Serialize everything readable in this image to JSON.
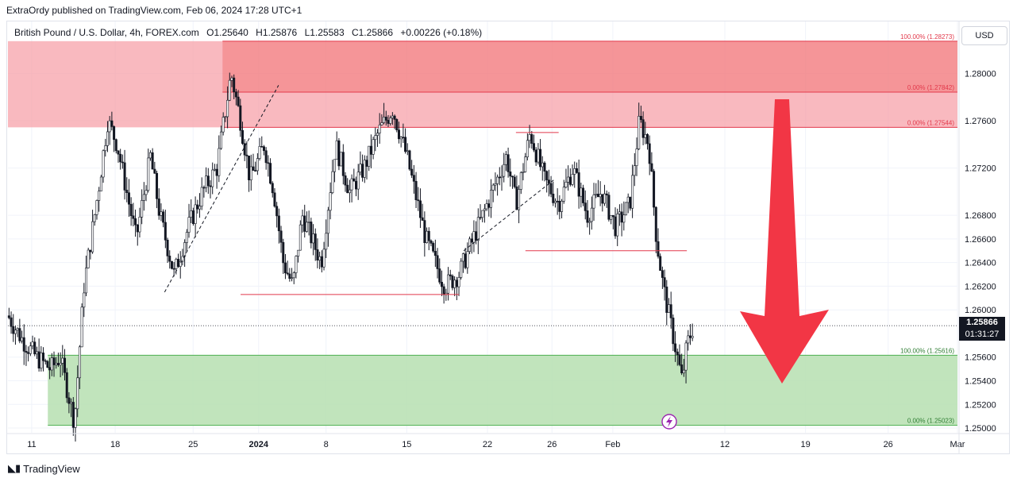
{
  "credit": "ExtraOrdy published on TradingView.com, Feb 06, 2024 17:28 UTC+1",
  "symbol": {
    "name": "British Pound / U.S. Dollar, 4h, FOREX.com",
    "open": "O1.25640",
    "high": "H1.25876",
    "low": "L1.25583",
    "close": "C1.25866",
    "change": "+0.00226 (+0.18%)"
  },
  "currency": "USD",
  "last_price": "1.25866",
  "countdown": "01:31:27",
  "footer_brand": "TradingView",
  "colors": {
    "bull": "#26a69a",
    "bear": "#ef5350",
    "supply_zone": "#f7a1aa",
    "demand_zone": "#b6dfb0",
    "arrow": "#f23645"
  },
  "chart_data": {
    "type": "candlestick",
    "ylim": [
      1.2496,
      1.2844
    ],
    "y_ticks": [
      "1.28000",
      "1.27600",
      "1.27200",
      "1.26800",
      "1.26600",
      "1.26400",
      "1.26200",
      "1.26000",
      "1.25600",
      "1.25400",
      "1.25200",
      "1.25000"
    ],
    "x_ticks": [
      "11",
      "18",
      "25",
      "2024",
      "8",
      "15",
      "22",
      "26",
      "Feb",
      "12",
      "19",
      "26",
      "Mar"
    ],
    "supply_zone": {
      "top": 1.28273,
      "bottom": 1.27544,
      "levels": [
        {
          "label": "100.00% (1.28273)",
          "price": 1.28273
        },
        {
          "label": "0.00% (1.27842)",
          "price": 1.27842
        },
        {
          "label": "0.00% (1.27544)",
          "price": 1.27544
        }
      ]
    },
    "demand_zone": {
      "top": 1.25616,
      "bottom": 1.25023,
      "levels": [
        {
          "label": "100.00% (1.25616)",
          "price": 1.25616
        },
        {
          "label": "0.00% (1.25023)",
          "price": 1.25023
        }
      ]
    },
    "horizontal_lines": [
      {
        "price": 1.2613,
        "from": 0.245,
        "to": 0.475
      },
      {
        "price": 1.265,
        "from": 0.545,
        "to": 0.715
      },
      {
        "price": 1.275,
        "from": 0.535,
        "to": 0.58
      }
    ],
    "trend_lines": [
      {
        "from": [
          0.165,
          1.2615
        ],
        "to": [
          0.285,
          1.279
        ]
      },
      {
        "from": [
          0.48,
          1.265
        ],
        "to": [
          0.575,
          1.271
        ]
      }
    ],
    "path": [
      [
        0.0,
        1.2595
      ],
      [
        0.015,
        1.2575
      ],
      [
        0.03,
        1.256
      ],
      [
        0.045,
        1.255
      ],
      [
        0.055,
        1.256
      ],
      [
        0.07,
        1.2505
      ],
      [
        0.08,
        1.262
      ],
      [
        0.095,
        1.27
      ],
      [
        0.105,
        1.276
      ],
      [
        0.115,
        1.274
      ],
      [
        0.125,
        1.27
      ],
      [
        0.135,
        1.266
      ],
      [
        0.15,
        1.273
      ],
      [
        0.16,
        1.268
      ],
      [
        0.175,
        1.263
      ],
      [
        0.19,
        1.267
      ],
      [
        0.205,
        1.27
      ],
      [
        0.22,
        1.272
      ],
      [
        0.235,
        1.28
      ],
      [
        0.245,
        1.276
      ],
      [
        0.255,
        1.271
      ],
      [
        0.27,
        1.274
      ],
      [
        0.28,
        1.27
      ],
      [
        0.29,
        1.264
      ],
      [
        0.3,
        1.262
      ],
      [
        0.31,
        1.268
      ],
      [
        0.33,
        1.264
      ],
      [
        0.345,
        1.274
      ],
      [
        0.36,
        1.27
      ],
      [
        0.375,
        1.272
      ],
      [
        0.39,
        1.275
      ],
      [
        0.405,
        1.277
      ],
      [
        0.42,
        1.273
      ],
      [
        0.44,
        1.266
      ],
      [
        0.46,
        1.262
      ],
      [
        0.475,
        1.263
      ],
      [
        0.49,
        1.266
      ],
      [
        0.51,
        1.27
      ],
      [
        0.525,
        1.273
      ],
      [
        0.535,
        1.269
      ],
      [
        0.55,
        1.275
      ],
      [
        0.565,
        1.271
      ],
      [
        0.58,
        1.269
      ],
      [
        0.595,
        1.272
      ],
      [
        0.61,
        1.268
      ],
      [
        0.625,
        1.27
      ],
      [
        0.64,
        1.267
      ],
      [
        0.655,
        1.269
      ],
      [
        0.665,
        1.276
      ],
      [
        0.675,
        1.274
      ],
      [
        0.683,
        1.266
      ],
      [
        0.69,
        1.262
      ],
      [
        0.7,
        1.258
      ],
      [
        0.71,
        1.254
      ],
      [
        0.715,
        1.257
      ],
      [
        0.722,
        1.2587
      ]
    ]
  }
}
